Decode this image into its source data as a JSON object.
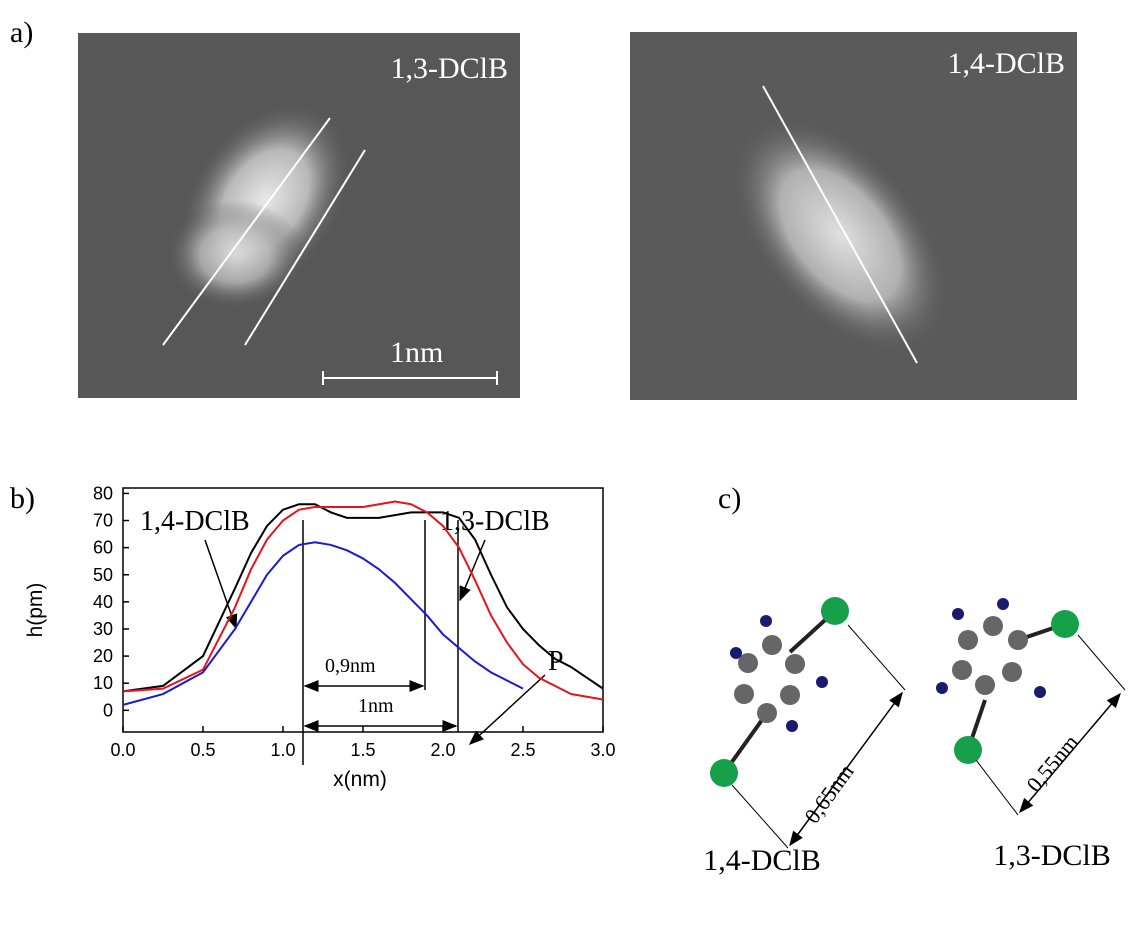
{
  "panel_labels": [
    "a)",
    "b)",
    "c)"
  ],
  "images": [
    {
      "label": "1,3-DClB",
      "scale": "1nm"
    },
    {
      "label": "1,4-DClB"
    }
  ],
  "chart_data": {
    "type": "line",
    "x_label": "x(nm)",
    "y_label": "h(pm)",
    "x": [
      0,
      0.25,
      0.5,
      0.7,
      0.8,
      0.9,
      1.0,
      1.1,
      1.2,
      1.3,
      1.4,
      1.5,
      1.6,
      1.7,
      1.8,
      1.9,
      2.0,
      2.1,
      2.2,
      2.3,
      2.4,
      2.5,
      2.6,
      2.7,
      2.8,
      2.9,
      3.0
    ],
    "series": [
      {
        "color": "#000000",
        "values": [
          7,
          9,
          20,
          45,
          58,
          68,
          74,
          76,
          76,
          73,
          71,
          71,
          71,
          72,
          73,
          73,
          73,
          71,
          63,
          50,
          38,
          30,
          24,
          19,
          16,
          12,
          8
        ]
      },
      {
        "color": "#e8141b",
        "values": [
          7,
          8,
          15,
          38,
          52,
          63,
          70,
          74,
          75,
          75,
          75,
          75,
          76,
          77,
          76,
          73,
          68,
          60,
          48,
          35,
          25,
          17,
          12,
          9,
          6,
          5,
          4
        ]
      },
      {
        "color": "#1a1ad6",
        "values": [
          2,
          6,
          14,
          30,
          40,
          50,
          57,
          61,
          62,
          61,
          59,
          56,
          52,
          47,
          41,
          35,
          28,
          23,
          18,
          14,
          11,
          8,
          null,
          null,
          null,
          null,
          null
        ]
      }
    ],
    "xlim": [
      0,
      3
    ],
    "ylim": [
      -8,
      82
    ],
    "xticks": [
      {
        "value": 0,
        "label": "0.0"
      },
      0.5,
      {
        "value": 1,
        "label": "1.0"
      },
      1.5,
      {
        "value": 2,
        "label": "2.0"
      },
      2.5,
      {
        "value": 3,
        "label": "3.0"
      }
    ],
    "yticks": [
      0,
      10,
      20,
      30,
      40,
      50,
      60,
      70,
      80
    ],
    "annotations": [
      "1,4-DClB",
      "1,3-DClB",
      "P",
      "0,9nm",
      "1nm"
    ]
  },
  "molecules": [
    {
      "name": "1,4-DClB",
      "distance": "0,65nm"
    },
    {
      "name": "1,3-DClB",
      "distance": "0,55nm"
    }
  ]
}
